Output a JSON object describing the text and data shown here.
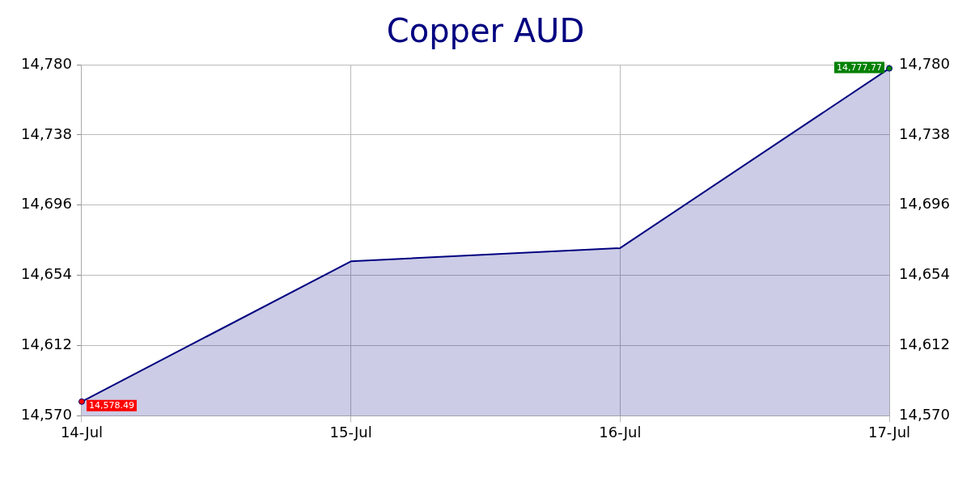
{
  "chart_data": {
    "type": "area",
    "title": "Copper AUD",
    "categories": [
      "14-Jul",
      "15-Jul",
      "16-Jul",
      "17-Jul"
    ],
    "series": [
      {
        "color": "#000080",
        "values": [
          14578.49,
          14662.4,
          14670.3,
          14777.77
        ],
        "colors": [
          "#ff0000",
          null,
          null,
          "#008000"
        ],
        "value_labels": [
          "14,578.49",
          null,
          null,
          "14,777.77"
        ]
      }
    ],
    "ylim": [
      14570,
      14780
    ],
    "yticks": [
      {
        "value": 14570,
        "label": "14,570"
      },
      {
        "value": 14612,
        "label": "14,612"
      },
      {
        "value": 14654,
        "label": "14,654"
      },
      {
        "value": 14696,
        "label": "14,696"
      },
      {
        "value": 14738,
        "label": "14,738"
      },
      {
        "value": 14780,
        "label": "14,780"
      }
    ],
    "y2lim": [
      14570,
      14780
    ],
    "y2ticks": [
      {
        "value": 14570,
        "label": "14,570"
      },
      {
        "value": 14612,
        "label": "14,612"
      },
      {
        "value": 14654,
        "label": "14,654"
      },
      {
        "value": 14696,
        "label": "14,696"
      },
      {
        "value": 14738,
        "label": "14,738"
      },
      {
        "value": 14780,
        "label": "14,780"
      }
    ],
    "grid": true,
    "legend": false
  }
}
